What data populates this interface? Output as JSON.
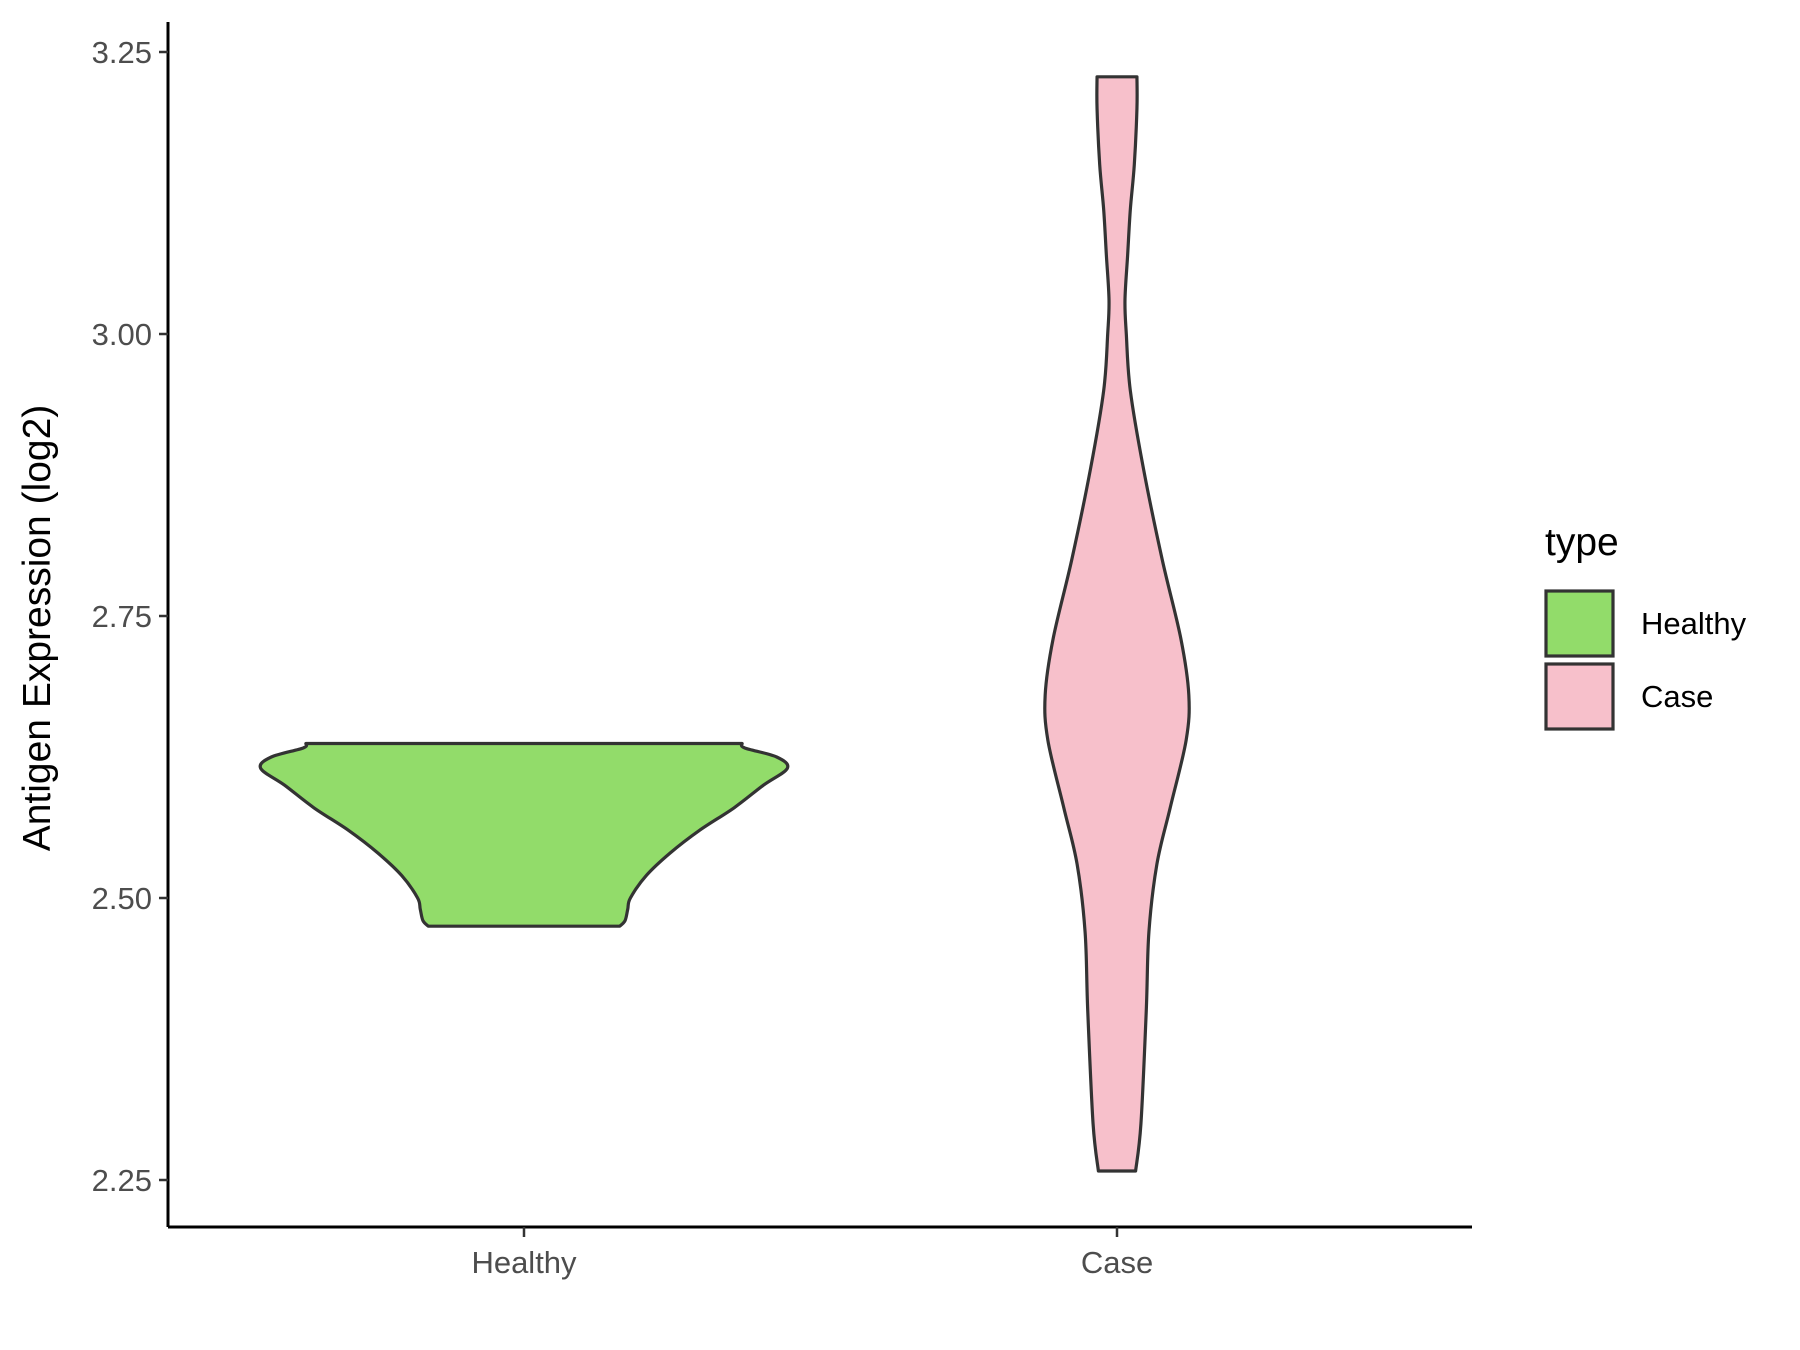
{
  "chart_data": {
    "type": "violin",
    "ylabel": "Antigen Expression (log2)",
    "ylim": [
      2.21,
      3.28
    ],
    "yticks": [
      "2.25",
      "2.50",
      "2.75",
      "3.00",
      "3.25"
    ],
    "categories": [
      "Healthy",
      "Case"
    ],
    "grid": false,
    "legend": {
      "title": "type",
      "position": "right",
      "entries": [
        {
          "label": "Healthy",
          "color": "#92dc6a"
        },
        {
          "label": "Case",
          "color": "#f7c0cb"
        }
      ]
    },
    "series": [
      {
        "category": "Healthy",
        "color": "#92dc6a",
        "ymin": 2.475,
        "ymax": 2.637,
        "profile": [
          [
            2.475,
            0.36
          ],
          [
            2.48,
            0.38
          ],
          [
            2.49,
            0.39
          ],
          [
            2.5,
            0.4
          ],
          [
            2.52,
            0.46
          ],
          [
            2.54,
            0.55
          ],
          [
            2.56,
            0.66
          ],
          [
            2.58,
            0.79
          ],
          [
            2.6,
            0.9
          ],
          [
            2.615,
            0.99
          ],
          [
            2.625,
            0.95
          ],
          [
            2.633,
            0.83
          ],
          [
            2.637,
            0.82
          ]
        ]
      },
      {
        "category": "Case",
        "color": "#f7c0cb",
        "ymin": 2.258,
        "ymax": 3.228,
        "profile": [
          [
            2.258,
            0.07
          ],
          [
            2.3,
            0.09
          ],
          [
            2.4,
            0.11
          ],
          [
            2.47,
            0.12
          ],
          [
            2.53,
            0.15
          ],
          [
            2.58,
            0.2
          ],
          [
            2.64,
            0.26
          ],
          [
            2.68,
            0.27
          ],
          [
            2.73,
            0.24
          ],
          [
            2.8,
            0.17
          ],
          [
            2.88,
            0.1
          ],
          [
            2.95,
            0.05
          ],
          [
            3.0,
            0.035
          ],
          [
            3.03,
            0.03
          ],
          [
            3.07,
            0.04
          ],
          [
            3.11,
            0.05
          ],
          [
            3.15,
            0.065
          ],
          [
            3.2,
            0.075
          ],
          [
            3.228,
            0.075
          ]
        ]
      }
    ]
  }
}
